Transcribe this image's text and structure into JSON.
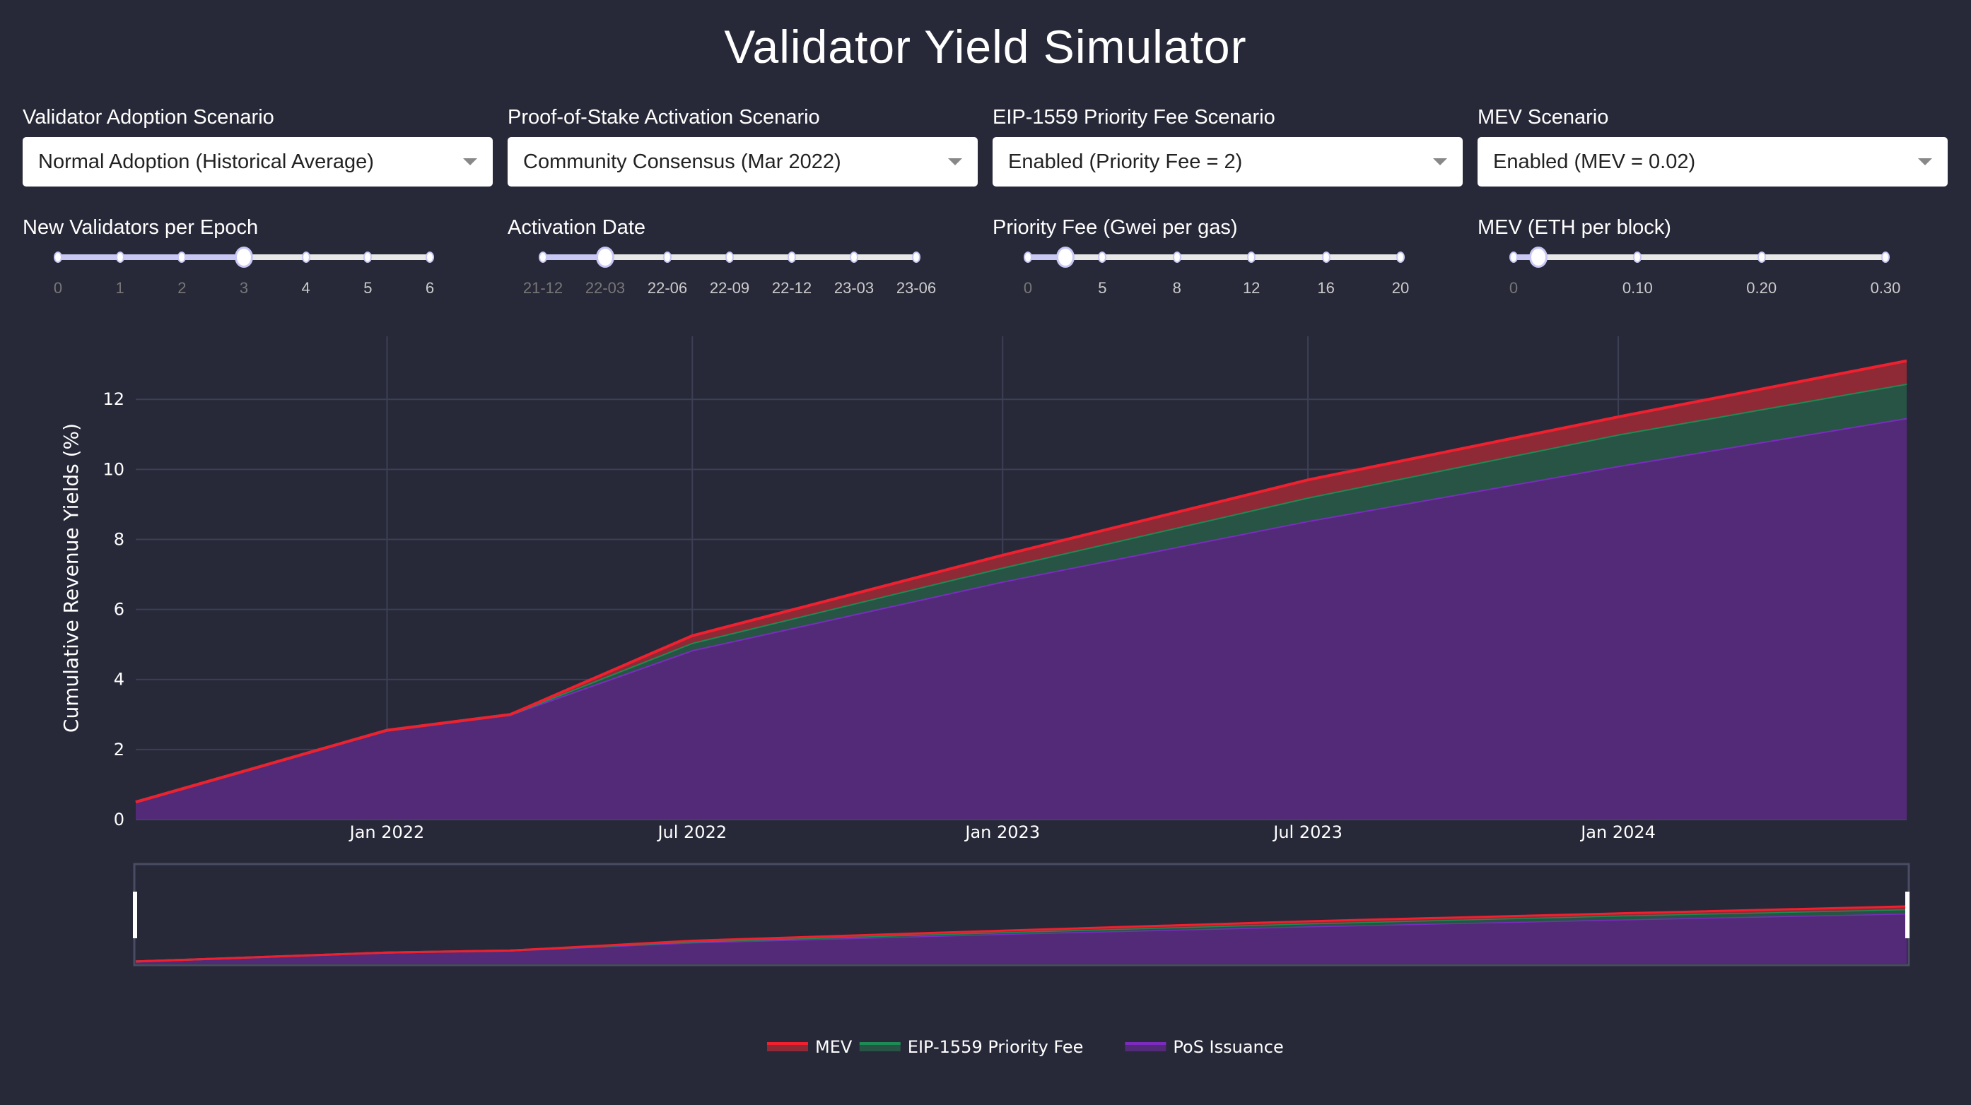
{
  "title": "Validator Yield Simulator",
  "controls": [
    {
      "label": "Validator Adoption Scenario",
      "selected": "Normal Adoption (Historical Average)",
      "slider_label": "New Validators per Epoch",
      "ticks": [
        "0",
        "1",
        "2",
        "3",
        "4",
        "5",
        "6"
      ],
      "value_index": 3
    },
    {
      "label": "Proof-of-Stake Activation Scenario",
      "selected": "Community Consensus (Mar 2022)",
      "slider_label": "Activation Date",
      "ticks": [
        "21-12",
        "22-03",
        "22-06",
        "22-09",
        "22-12",
        "23-03",
        "23-06"
      ],
      "value_index": 1
    },
    {
      "label": "EIP-1559 Priority Fee Scenario",
      "selected": "Enabled (Priority Fee = 2)",
      "slider_label": "Priority Fee (Gwei per gas)",
      "ticks": [
        "0",
        "5",
        "8",
        "12",
        "16",
        "20"
      ],
      "value_index": 0.5
    },
    {
      "label": "MEV Scenario",
      "selected": "Enabled (MEV = 0.02)",
      "slider_label": "MEV (ETH per block)",
      "ticks": [
        "0",
        "0.10",
        "0.20",
        "0.30"
      ],
      "value_index": 0.2
    }
  ],
  "colors": {
    "background": "#272938",
    "accent": "#c9c8f5",
    "mev": "#f0202f",
    "fee": "#1e8a55",
    "pos": "#7b2cbf"
  },
  "chart_data": {
    "type": "area",
    "stacked": true,
    "ylabel": "Cumulative Revenue Yields (%)",
    "xlabel": "",
    "ylim": [
      0,
      13.8
    ],
    "xlim": [
      "2021-08-05",
      "2024-06-20"
    ],
    "yticks": [
      0,
      2,
      4,
      6,
      8,
      10,
      12
    ],
    "xticks": [
      {
        "date": "2022-01-01",
        "label": "Jan 2022"
      },
      {
        "date": "2022-07-01",
        "label": "Jul 2022"
      },
      {
        "date": "2023-01-01",
        "label": "Jan 2023"
      },
      {
        "date": "2023-07-01",
        "label": "Jul 2023"
      },
      {
        "date": "2024-01-01",
        "label": "Jan 2024"
      }
    ],
    "grid": true,
    "legend_position": "bottom",
    "range_slider": true,
    "x": [
      "2021-08-05",
      "2022-01-01",
      "2022-03-15",
      "2022-07-01",
      "2023-01-01",
      "2023-07-01",
      "2024-01-01",
      "2024-06-20"
    ],
    "series": [
      {
        "name": "PoS Issuance",
        "values": [
          0.5,
          2.55,
          3.0,
          4.84,
          6.8,
          8.53,
          10.1,
          11.47
        ]
      },
      {
        "name": "EIP-1559 Priority Fee",
        "values": [
          0,
          0,
          0,
          0.21,
          0.4,
          0.67,
          0.9,
          0.98
        ]
      },
      {
        "name": "MEV",
        "values": [
          0,
          0,
          0,
          0.2,
          0.35,
          0.5,
          0.5,
          0.65
        ]
      }
    ],
    "legend": [
      "MEV",
      "EIP-1559 Priority Fee",
      "PoS Issuance"
    ]
  }
}
